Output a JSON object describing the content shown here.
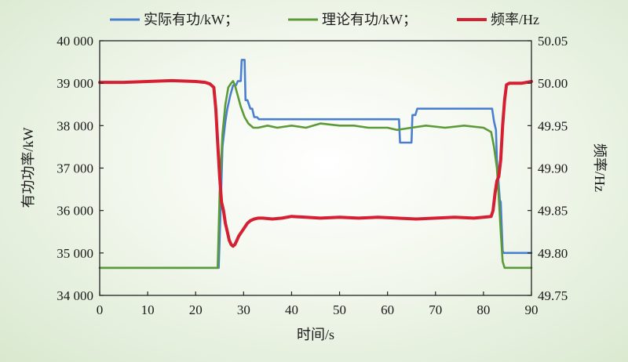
{
  "chart_data": {
    "type": "line",
    "xlabel": "时间/s",
    "ylabel": "有功功率/kW",
    "y2label": "频率/Hz",
    "xlim": [
      0,
      90
    ],
    "ylim": [
      34000,
      40000
    ],
    "y2lim": [
      49.75,
      50.05
    ],
    "xticks": [
      "0",
      "10",
      "20",
      "30",
      "40",
      "50",
      "60",
      "70",
      "80",
      "90"
    ],
    "yticks": [
      "34 000",
      "35 000",
      "36 000",
      "37 000",
      "38 000",
      "39 000",
      "40 000"
    ],
    "y2ticks": [
      "49.75",
      "49.80",
      "49.85",
      "49.90",
      "49.95",
      "50.00",
      "50.05"
    ],
    "grid": false,
    "legend_position": "top",
    "series": [
      {
        "name": "实际有功/kW；",
        "axis": "left",
        "color": "#4a7fd0",
        "x": [
          0,
          24.8,
          25.2,
          25.6,
          26.2,
          26.6,
          27.2,
          27.8,
          28.4,
          28.8,
          29.4,
          29.6,
          30.2,
          30.4,
          30.8,
          31.4,
          31.8,
          32.2,
          32.8,
          33.2,
          40,
          50,
          62.4,
          62.6,
          65,
          65.2,
          65.8,
          66.2,
          80,
          81.8,
          82.2,
          82.6,
          82.8,
          83.4,
          83.6,
          84.0,
          84.2,
          90
        ],
        "y": [
          34650,
          34650,
          36000,
          37500,
          38100,
          38400,
          38700,
          38950,
          38950,
          39050,
          39050,
          39550,
          39550,
          38600,
          38600,
          38400,
          38400,
          38200,
          38200,
          38150,
          38150,
          38150,
          38150,
          37600,
          37600,
          38250,
          38250,
          38400,
          38400,
          38400,
          38100,
          37900,
          37200,
          36250,
          36200,
          35050,
          35000,
          35000
        ]
      },
      {
        "name": "理论有功/kW；",
        "axis": "left",
        "color": "#5c9a38",
        "x": [
          0,
          24.6,
          25.0,
          25.6,
          26.2,
          26.8,
          27.4,
          27.8,
          28.2,
          28.8,
          29.4,
          30.2,
          31.0,
          32.0,
          33.0,
          35,
          37,
          40,
          43,
          46,
          50,
          53,
          56,
          60,
          62,
          65,
          68,
          72,
          76,
          80,
          81.6,
          82.2,
          82.8,
          83.2,
          83.6,
          84.0,
          84.4,
          90
        ],
        "y": [
          34650,
          34650,
          36400,
          37800,
          38500,
          38900,
          39000,
          39050,
          38950,
          38700,
          38450,
          38200,
          38050,
          37950,
          37950,
          38000,
          37950,
          38000,
          37950,
          38050,
          38000,
          38000,
          37950,
          37950,
          37900,
          37950,
          38000,
          37950,
          38000,
          37950,
          37850,
          37500,
          37000,
          36300,
          35500,
          34800,
          34650,
          34650
        ]
      },
      {
        "name": "频率/Hz",
        "axis": "right",
        "color": "#d42032",
        "x": [
          0,
          5,
          10,
          15,
          20,
          22,
          23,
          23.8,
          24.2,
          24.6,
          25.0,
          25.4,
          25.8,
          26.2,
          26.6,
          27.0,
          27.4,
          27.8,
          28.2,
          28.6,
          29.0,
          29.6,
          30.2,
          30.8,
          31.4,
          32.2,
          33,
          34,
          36,
          38,
          40,
          43,
          46,
          50,
          54,
          58,
          62,
          66,
          70,
          74,
          78,
          80,
          81.6,
          82.0,
          82.4,
          82.8,
          83.2,
          83.6,
          84.0,
          84.4,
          84.8,
          85.4,
          86,
          88,
          90
        ],
        "y": [
          50.001,
          50.001,
          50.002,
          50.003,
          50.002,
          50.001,
          49.999,
          49.995,
          49.97,
          49.93,
          49.89,
          49.86,
          49.85,
          49.835,
          49.825,
          49.815,
          49.81,
          49.808,
          49.81,
          49.815,
          49.82,
          49.825,
          49.83,
          49.835,
          49.838,
          49.84,
          49.841,
          49.841,
          49.84,
          49.841,
          49.843,
          49.842,
          49.841,
          49.842,
          49.841,
          49.842,
          49.841,
          49.84,
          49.841,
          49.842,
          49.841,
          49.842,
          49.843,
          49.85,
          49.87,
          49.885,
          49.89,
          49.91,
          49.95,
          49.98,
          49.998,
          50.0,
          50.0,
          50.0,
          50.002
        ]
      }
    ]
  }
}
